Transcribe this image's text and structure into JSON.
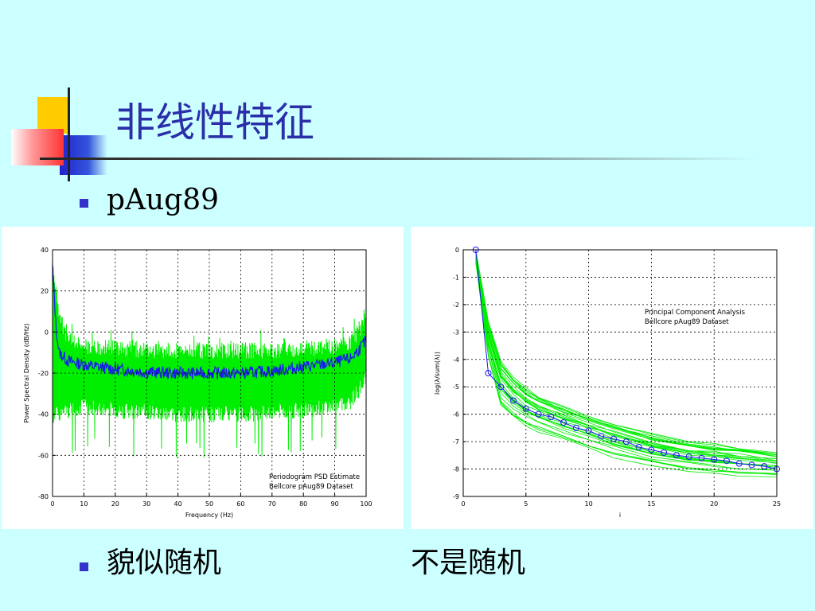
{
  "slide": {
    "title": "非线性特征",
    "bullets": [
      {
        "text": "pAug89"
      },
      {
        "text": "貌似随机",
        "text2": "不是随机"
      }
    ]
  },
  "colors": {
    "background": "#ccffff",
    "title": "#2a2ea8",
    "bullet": "#3333cc",
    "green_series": "#00ee00",
    "blue_series": "#1a1aee"
  },
  "chart_data": [
    {
      "type": "line",
      "xlabel": "Frequency (Hz)",
      "ylabel": "Power Spectral Density (dB/Hz)",
      "xlim": [
        0,
        100
      ],
      "ylim": [
        -80,
        40
      ],
      "xticks": [
        0,
        10,
        20,
        30,
        40,
        50,
        60,
        70,
        80,
        90,
        100
      ],
      "yticks": [
        -80,
        -60,
        -40,
        -20,
        0,
        20,
        40
      ],
      "grid": true,
      "annotation": [
        "Periodogram PSD Estimate",
        "Bellcore pAug89 Dataset"
      ],
      "annotation_position": "bottom-right",
      "series": [
        {
          "color": "#00ee00",
          "kind": "noisy band",
          "x": [
            0,
            2,
            5,
            10,
            20,
            30,
            40,
            50,
            60,
            70,
            80,
            90,
            95,
            98,
            100
          ],
          "upper": [
            38,
            12,
            0,
            -3,
            -4,
            -5,
            -5,
            -5,
            -5,
            -5,
            -4,
            -3,
            -2,
            5,
            14
          ],
          "lower": [
            -45,
            -44,
            -42,
            -40,
            -42,
            -43,
            -44,
            -44,
            -44,
            -43,
            -42,
            -40,
            -38,
            -32,
            -25
          ]
        },
        {
          "color": "#1a1aee",
          "kind": "smoothed",
          "x": [
            0,
            1,
            2,
            5,
            10,
            20,
            30,
            40,
            50,
            60,
            70,
            80,
            90,
            95,
            98,
            100
          ],
          "y": [
            32,
            5,
            -10,
            -14,
            -16,
            -18,
            -19.5,
            -20,
            -20,
            -20,
            -19,
            -17,
            -15,
            -13,
            -8,
            -4
          ]
        }
      ]
    },
    {
      "type": "line",
      "xlabel": "i",
      "ylabel": "log(λ/sum(λ))",
      "xlim": [
        0,
        25
      ],
      "ylim": [
        -9,
        0
      ],
      "xticks": [
        0,
        5,
        10,
        15,
        20,
        25
      ],
      "yticks": [
        -9,
        -8,
        -7,
        -6,
        -5,
        -4,
        -3,
        -2,
        -1,
        0
      ],
      "grid": true,
      "annotation": [
        "Principal Component Analysis",
        "Bellcore pAug89 Dataset"
      ],
      "annotation_position": "top-right",
      "series": [
        {
          "color": "#00ee00",
          "kind": "bundle of curves",
          "x": [
            1,
            1.5,
            2,
            3,
            4,
            5,
            6,
            8,
            10,
            12,
            15,
            18,
            20,
            22,
            25
          ],
          "upper": [
            0,
            -1.3,
            -2.6,
            -4.0,
            -4.6,
            -5.0,
            -5.3,
            -5.7,
            -6.0,
            -6.3,
            -6.7,
            -7.0,
            -7.1,
            -7.2,
            -7.4
          ],
          "lower": [
            -0.5,
            -2.2,
            -4.0,
            -5.8,
            -6.2,
            -6.5,
            -6.7,
            -7.0,
            -7.3,
            -7.6,
            -7.9,
            -8.1,
            -8.2,
            -8.3,
            -8.3
          ]
        },
        {
          "color": "#1a1aee",
          "kind": "circle markers",
          "x": [
            1,
            2,
            3,
            4,
            5,
            6,
            7,
            8,
            9,
            10,
            11,
            12,
            13,
            14,
            15,
            16,
            17,
            18,
            19,
            20,
            21,
            22,
            23,
            24,
            25
          ],
          "y": [
            0,
            -4.5,
            -5.0,
            -5.5,
            -5.8,
            -6.0,
            -6.1,
            -6.3,
            -6.5,
            -6.6,
            -6.8,
            -6.9,
            -7.0,
            -7.2,
            -7.3,
            -7.4,
            -7.5,
            -7.55,
            -7.6,
            -7.65,
            -7.7,
            -7.8,
            -7.85,
            -7.9,
            -8.0
          ]
        }
      ]
    }
  ]
}
